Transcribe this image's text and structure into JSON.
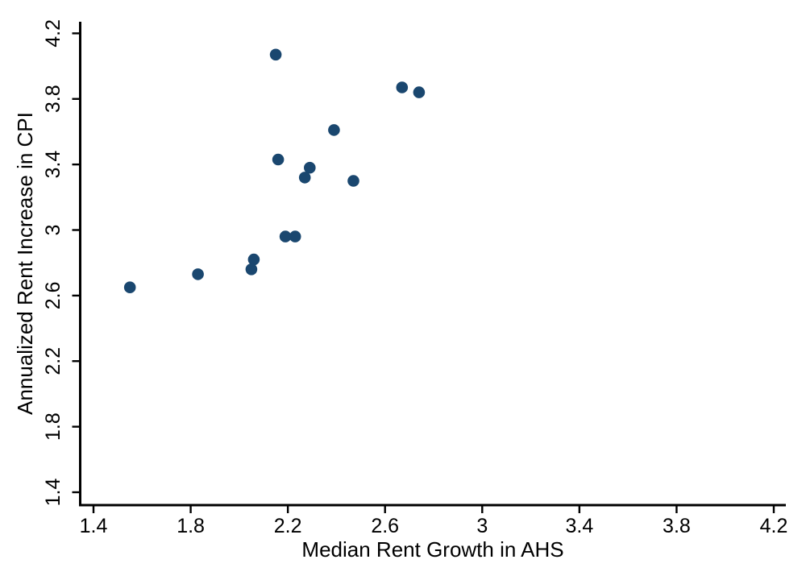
{
  "figure": {
    "background": "#ffffff",
    "axis_color": "#000000",
    "text_color": "#000000"
  },
  "chart_data": {
    "type": "scatter",
    "title": "",
    "xlabel": "Median Rent Growth in AHS",
    "ylabel": "Annualized Rent Increase in CPI",
    "xlim": [
      1.4,
      4.2
    ],
    "ylim": [
      1.4,
      4.2
    ],
    "xticks": [
      1.4,
      1.8,
      2.2,
      2.6,
      3,
      3.4,
      3.8,
      4.2
    ],
    "yticks": [
      1.4,
      1.8,
      2.2,
      2.6,
      3,
      3.4,
      3.8,
      4.2
    ],
    "xtick_labels": [
      "1.4",
      "1.8",
      "2.2",
      "2.6",
      "3",
      "3.4",
      "3.8",
      "4.2"
    ],
    "ytick_labels": [
      "1.4",
      "1.8",
      "2.2",
      "2.6",
      "3",
      "3.4",
      "3.8",
      "4.2"
    ],
    "grid": false,
    "legend_position": "none",
    "marker_color": "#1a476f",
    "marker_shape": "circle",
    "points": [
      {
        "x": 2.15,
        "y": 4.07
      },
      {
        "x": 2.67,
        "y": 3.87
      },
      {
        "x": 2.74,
        "y": 3.84
      },
      {
        "x": 2.39,
        "y": 3.61
      },
      {
        "x": 2.16,
        "y": 3.43
      },
      {
        "x": 2.29,
        "y": 3.38
      },
      {
        "x": 2.27,
        "y": 3.32
      },
      {
        "x": 2.47,
        "y": 3.3
      },
      {
        "x": 2.19,
        "y": 2.96
      },
      {
        "x": 2.23,
        "y": 2.96
      },
      {
        "x": 2.06,
        "y": 2.82
      },
      {
        "x": 2.05,
        "y": 2.76
      },
      {
        "x": 1.83,
        "y": 2.73
      },
      {
        "x": 1.55,
        "y": 2.65
      }
    ]
  }
}
